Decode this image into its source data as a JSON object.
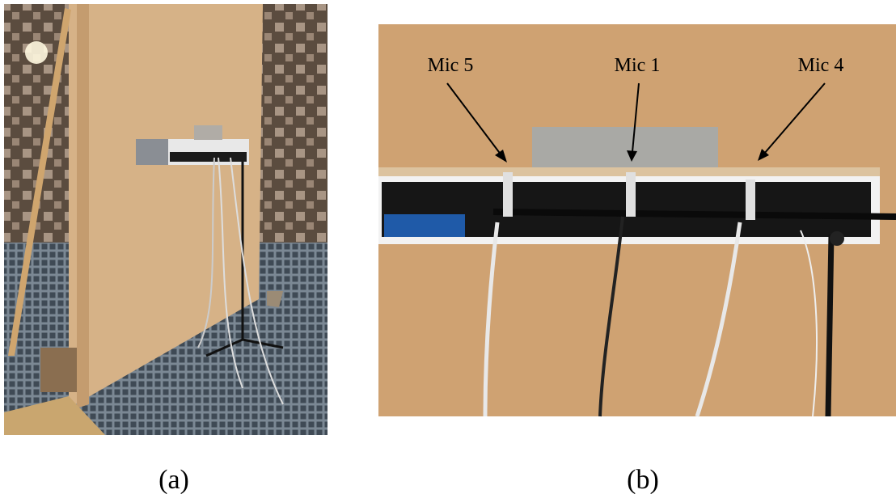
{
  "panels": [
    {
      "label": "(a)"
    },
    {
      "label": "(b)",
      "annotations": [
        "Mic 5",
        "Mic 1",
        "Mic 4"
      ]
    }
  ]
}
